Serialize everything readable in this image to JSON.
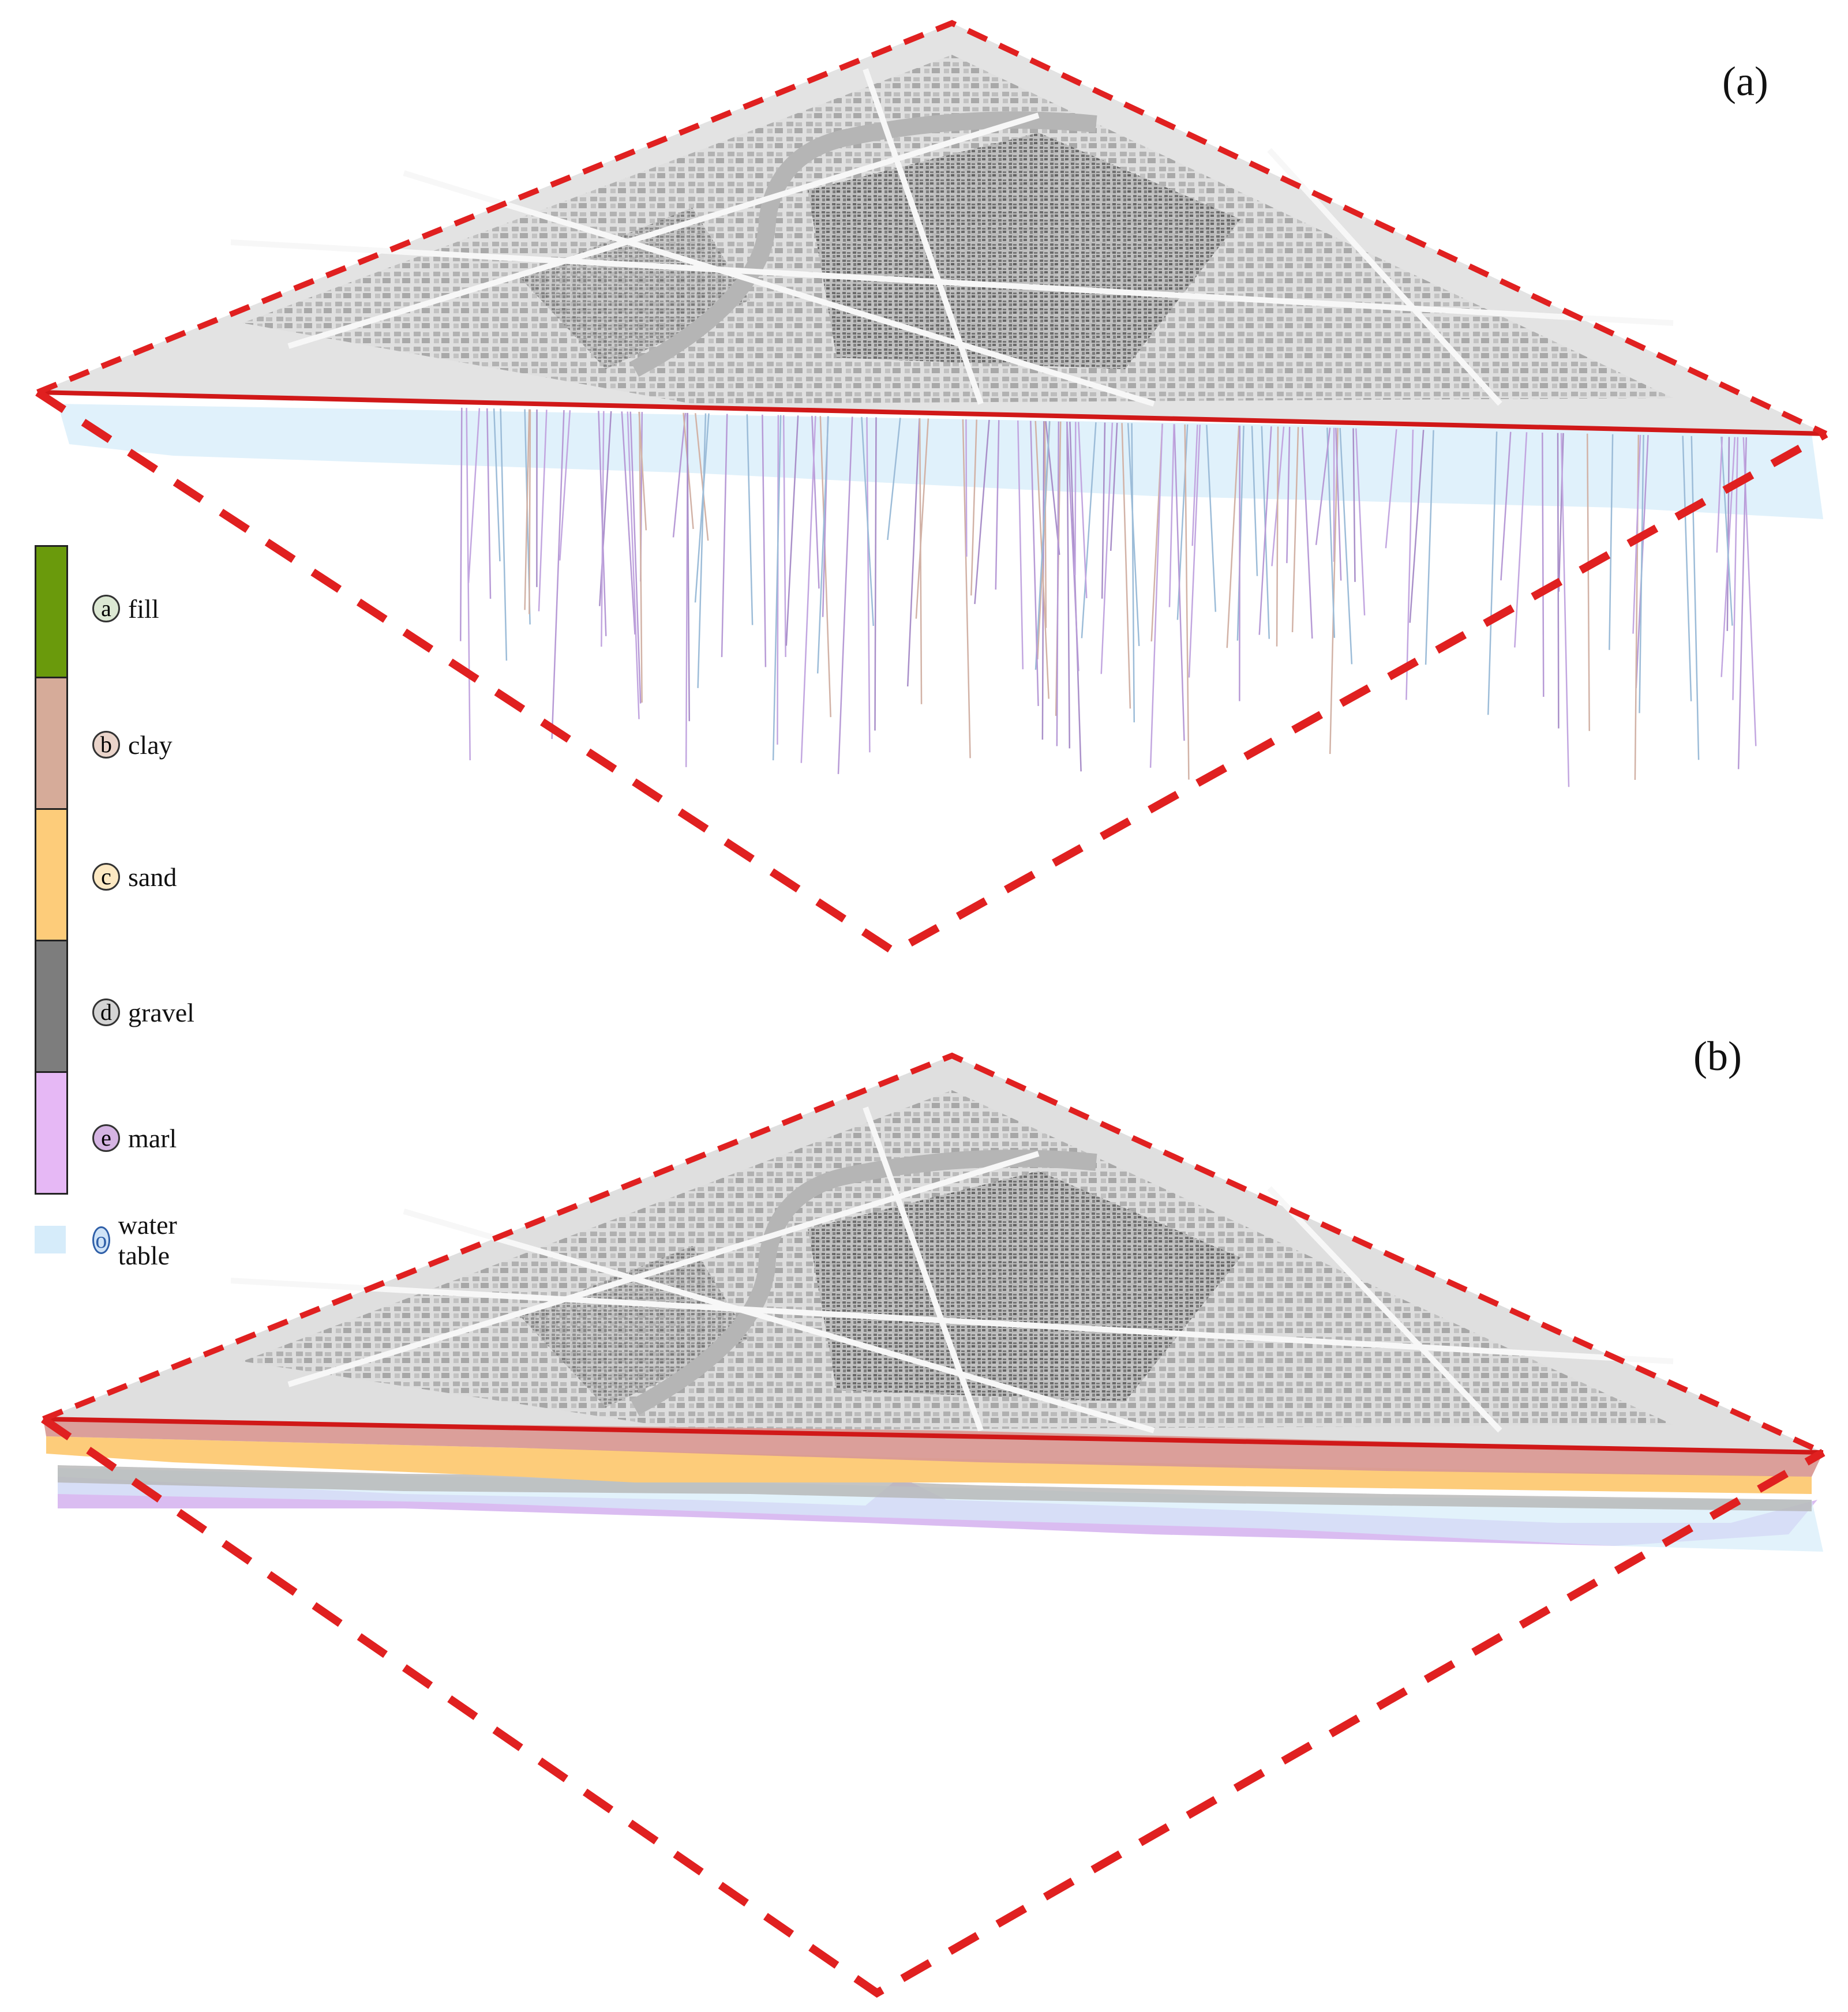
{
  "panels": [
    {
      "label": "(a)",
      "view": "boreholes"
    },
    {
      "label": "(b)",
      "view": "stratigraphic-surfaces"
    }
  ],
  "legend": {
    "layers": [
      {
        "key": "a",
        "name": "fill",
        "color": "#6a9a0c",
        "circle_fill": "#dce8d3"
      },
      {
        "key": "b",
        "name": "clay",
        "color": "#d6ab99",
        "circle_fill": "#ead4ca"
      },
      {
        "key": "c",
        "name": "sand",
        "color": "#fdcc7a",
        "circle_fill": "#fde9c3"
      },
      {
        "key": "d",
        "name": "gravel",
        "color": "#7d7d7d",
        "circle_fill": "#d3d3d3"
      },
      {
        "key": "e",
        "name": "marl",
        "color": "#e6b8f5",
        "circle_fill": "#d5b4e3"
      }
    ],
    "water_table": {
      "key": "o",
      "name": "water table",
      "color": "#d6ecfa",
      "circle_fill": "#cfe3f7",
      "circle_stroke": "#2f5fa8"
    }
  },
  "colors": {
    "boundary": "#e02020",
    "map_base": "#e2e2e2",
    "map_blocks": "#6e6e6e",
    "roads": "#f7f7f7",
    "river": "#b9b9b9"
  }
}
